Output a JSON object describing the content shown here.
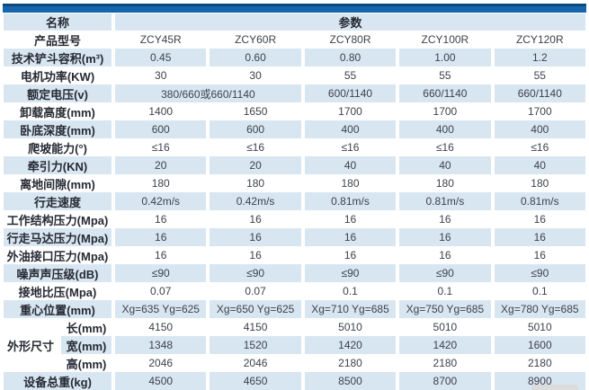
{
  "colors": {
    "top_bar_dark": "#0b4a80",
    "top_bar_main": "#1565ac",
    "row_shade": "#d8e6f2",
    "label_text": "#262a33",
    "value_text": "#3d424b"
  },
  "table": {
    "header": {
      "name_label": "名称",
      "params_label": "参数"
    },
    "rows": [
      {
        "label": "产品型号",
        "values": [
          "ZCY45R",
          "ZCY60R",
          "ZCY80R",
          "ZCY100R",
          "ZCY120R"
        ]
      },
      {
        "label": "技术铲斗容积(m³)",
        "values": [
          "0.45",
          "0.60",
          "0.80",
          "1.00",
          "1.2"
        ]
      },
      {
        "label": "电机功率(KW)",
        "values": [
          "30",
          "30",
          "55",
          "55",
          "55"
        ]
      },
      {
        "label": "额定电压(v)",
        "values": [
          "380/660或660/1140",
          "600/1140",
          "660/1140",
          "660/1140"
        ],
        "spans": [
          2,
          1,
          1,
          1
        ]
      },
      {
        "label": "卸载高度(mm)",
        "values": [
          "1400",
          "1650",
          "1700",
          "1700",
          "1700"
        ]
      },
      {
        "label": "卧底深度(mm)",
        "values": [
          "600",
          "600",
          "400",
          "400",
          "400"
        ]
      },
      {
        "label": "爬坡能力(°)",
        "values": [
          "≤16",
          "≤16",
          "≤16",
          "≤16",
          "≤16"
        ]
      },
      {
        "label": "牵引力(KN)",
        "values": [
          "20",
          "20",
          "40",
          "40",
          "40"
        ]
      },
      {
        "label": "离地间隙(mm)",
        "values": [
          "180",
          "180",
          "180",
          "180",
          "180"
        ]
      },
      {
        "label": "行走速度",
        "values": [
          "0.42m/s",
          "0.42m/s",
          "0.81m/s",
          "0.81m/s",
          "0.81m/s"
        ]
      },
      {
        "label": "工作结构压力(Mpa)",
        "values": [
          "16",
          "16",
          "16",
          "16",
          "16"
        ]
      },
      {
        "label": "行走马达压力(Mpa)",
        "values": [
          "16",
          "16",
          "16",
          "16",
          "16"
        ]
      },
      {
        "label": "外油接口压力(Mpa)",
        "values": [
          "16",
          "16",
          "16",
          "16",
          "16"
        ]
      },
      {
        "label": "噪声声压级(dB)",
        "values": [
          "≤90",
          "≤90",
          "≤90",
          "≤90",
          "≤90"
        ]
      },
      {
        "label": "接地比压(Mpa)",
        "values": [
          "0.07",
          "0.07",
          "0.1",
          "0.1",
          "0.1"
        ]
      },
      {
        "label": "重心位置(mm)",
        "values": [
          "Xg=635 Yg=625",
          "Xg=650 Yg=625",
          "Xg=710 Yg=685",
          "Xg=750 Yg=685",
          "Xg=780 Yg=685"
        ]
      },
      {
        "group": "外形尺寸",
        "group_rowspan": 3,
        "label": "长(mm)",
        "values": [
          "4150",
          "4150",
          "5010",
          "5010",
          "5010"
        ]
      },
      {
        "in_group": true,
        "label": "宽(mm)",
        "values": [
          "1348",
          "1520",
          "1420",
          "1420",
          "1600"
        ]
      },
      {
        "in_group": true,
        "label": "高(mm)",
        "values": [
          "2046",
          "2046",
          "2180",
          "2180",
          "2180"
        ]
      },
      {
        "label": "设备总重(kg)",
        "values": [
          "4500",
          "4650",
          "8500",
          "8700",
          "8900"
        ]
      }
    ]
  }
}
